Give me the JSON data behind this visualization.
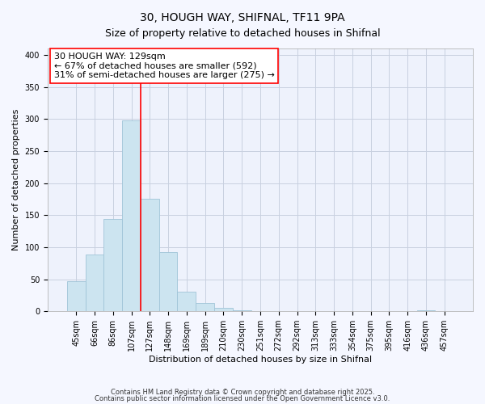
{
  "title": "30, HOUGH WAY, SHIFNAL, TF11 9PA",
  "subtitle": "Size of property relative to detached houses in Shifnal",
  "xlabel": "Distribution of detached houses by size in Shifnal",
  "ylabel": "Number of detached properties",
  "bin_labels": [
    "45sqm",
    "66sqm",
    "86sqm",
    "107sqm",
    "127sqm",
    "148sqm",
    "169sqm",
    "189sqm",
    "210sqm",
    "230sqm",
    "251sqm",
    "272sqm",
    "292sqm",
    "313sqm",
    "333sqm",
    "354sqm",
    "375sqm",
    "395sqm",
    "416sqm",
    "436sqm",
    "457sqm"
  ],
  "bar_heights": [
    47,
    88,
    144,
    298,
    175,
    92,
    30,
    13,
    5,
    1,
    0,
    0,
    0,
    0,
    0,
    0,
    0,
    0,
    0,
    1,
    0
  ],
  "bar_color": "#cce4f0",
  "bar_edge_color": "#a0c4d8",
  "vline_x_idx": 3.5,
  "vline_color": "red",
  "annotation_line1": "30 HOUGH WAY: 129sqm",
  "annotation_line2": "← 67% of detached houses are smaller (592)",
  "annotation_line3": "31% of semi-detached houses are larger (275) →",
  "annotation_box_facecolor": "white",
  "annotation_box_edgecolor": "red",
  "ylim": [
    0,
    410
  ],
  "yticks": [
    0,
    50,
    100,
    150,
    200,
    250,
    300,
    350,
    400
  ],
  "footer_line1": "Contains HM Land Registry data © Crown copyright and database right 2025.",
  "footer_line2": "Contains public sector information licensed under the Open Government Licence v3.0.",
  "bg_color": "#f5f7ff",
  "plot_bg_color": "#eef2fc",
  "grid_color": "#c8d0e0",
  "title_fontsize": 10,
  "axis_label_fontsize": 8,
  "tick_fontsize": 7,
  "annotation_fontsize": 8
}
